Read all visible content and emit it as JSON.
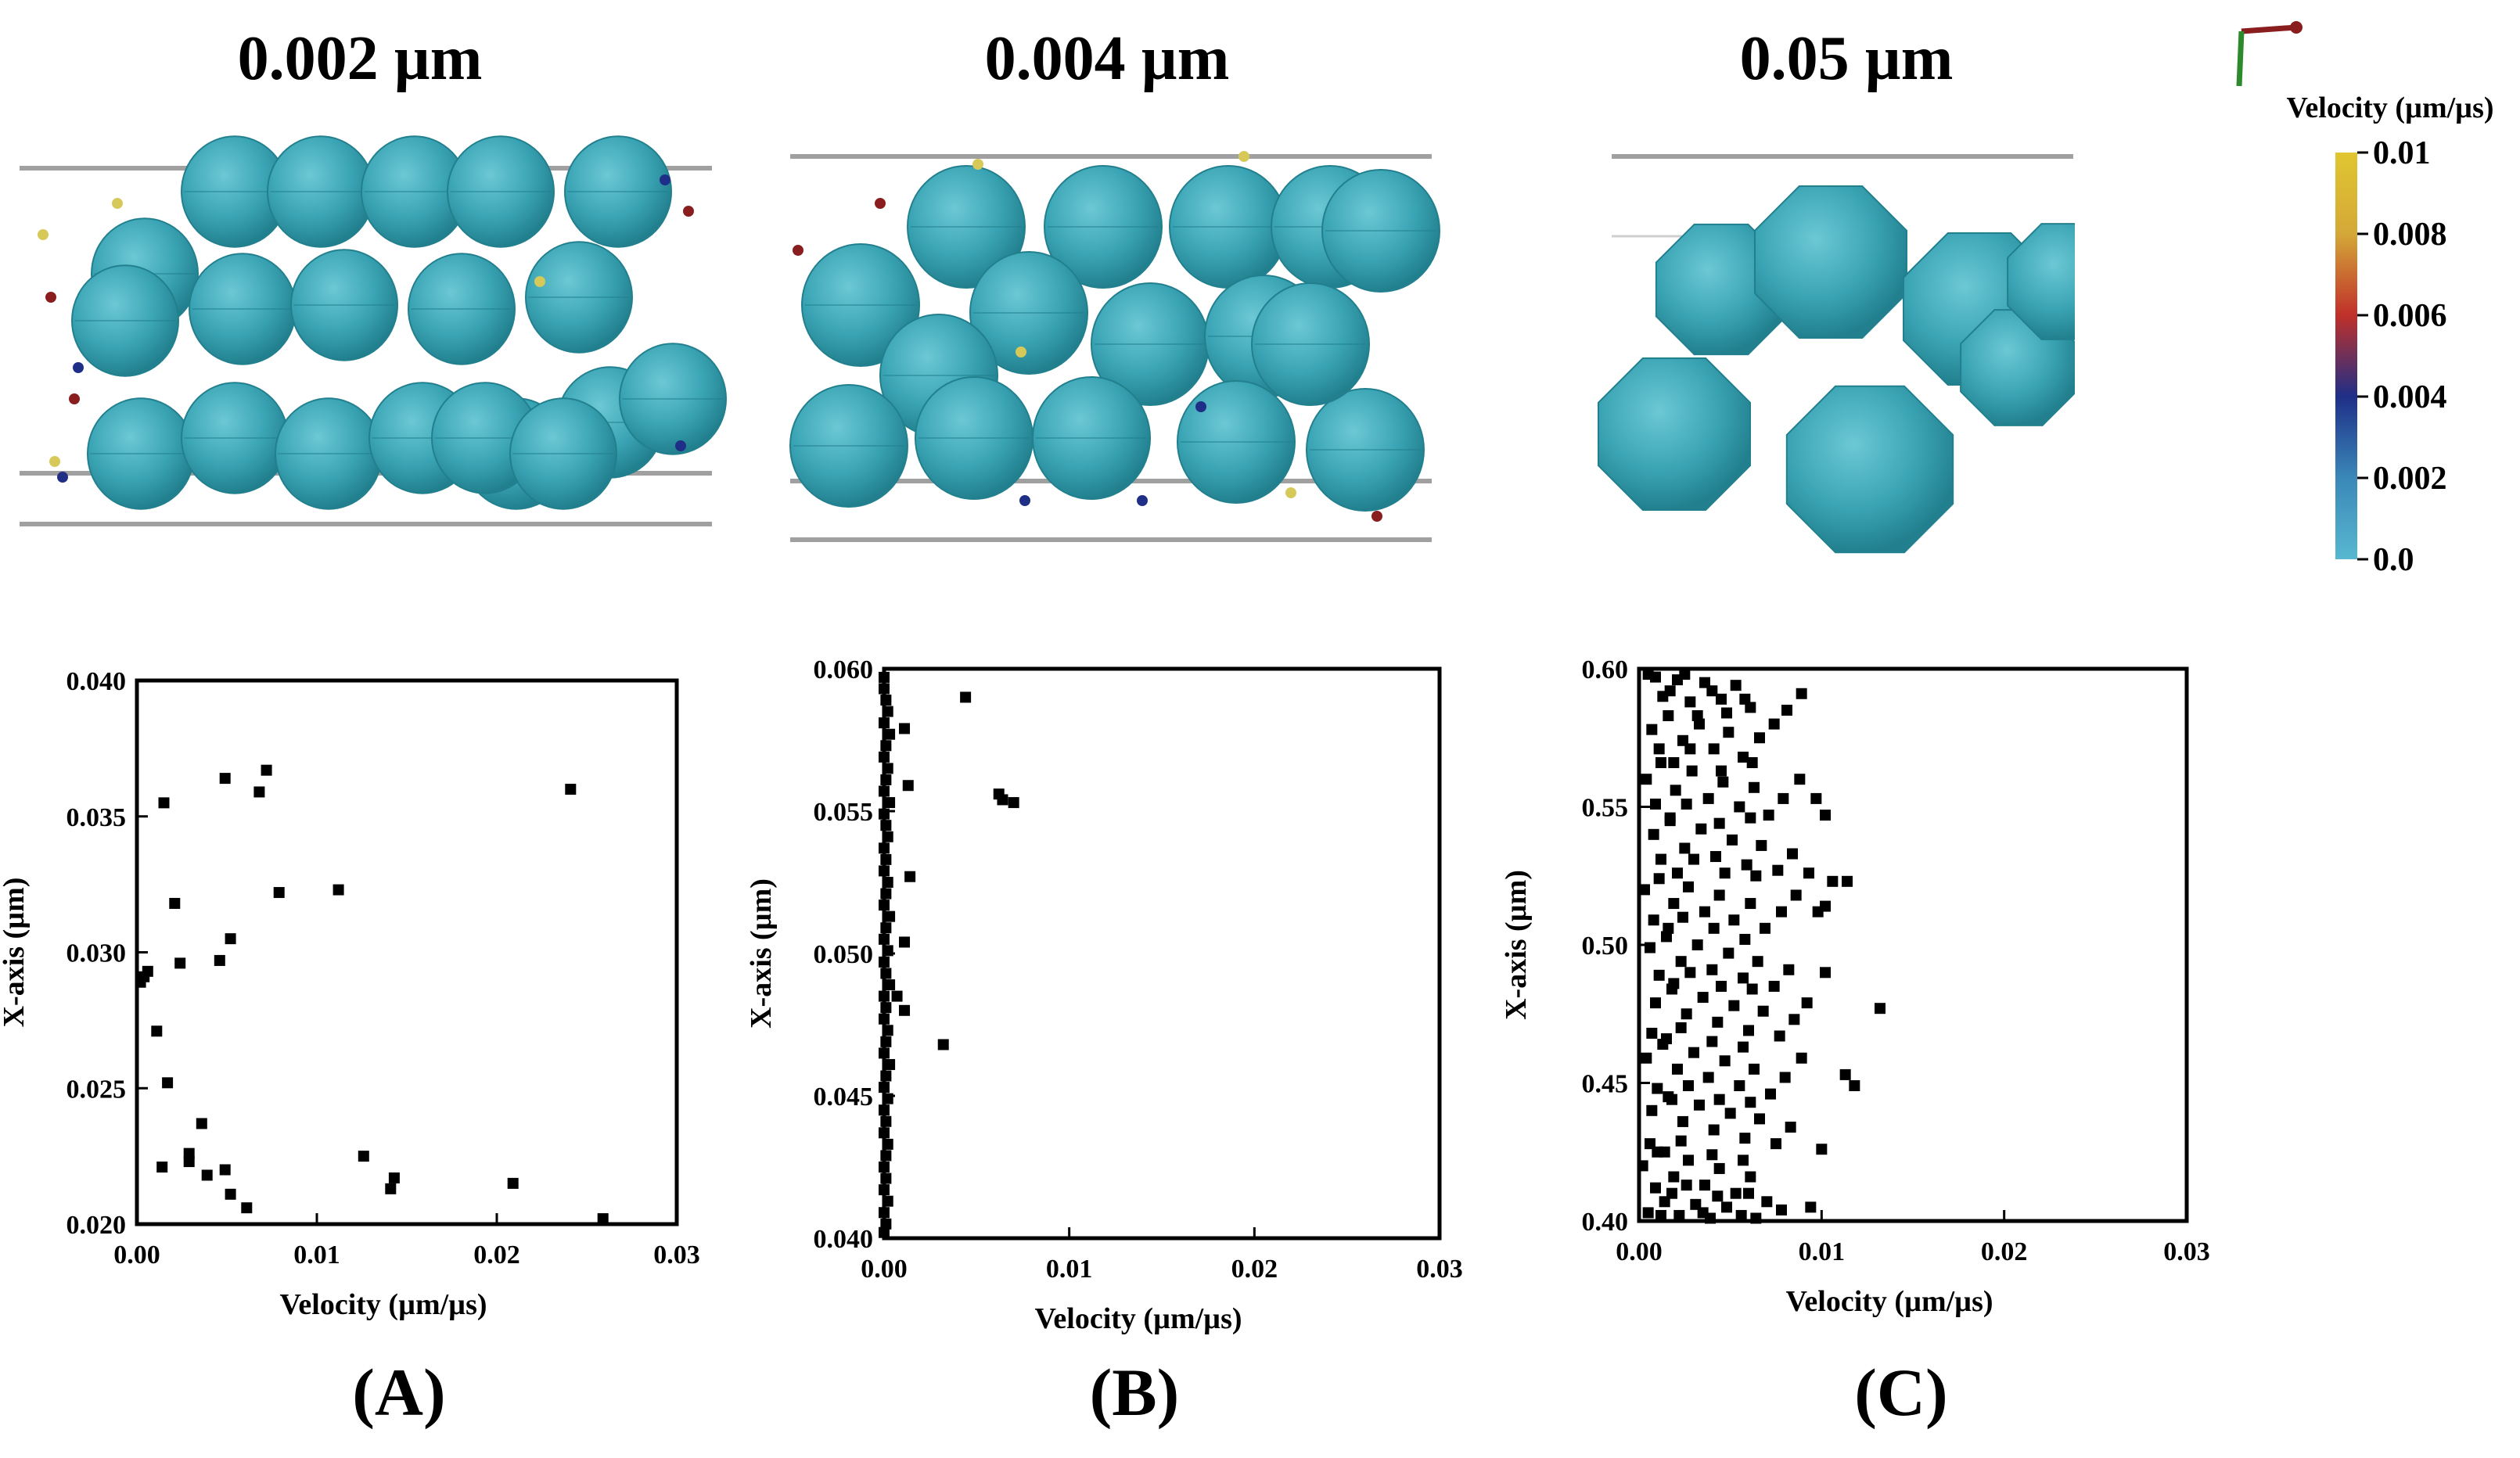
{
  "panels": [
    {
      "size_label": "0.002 µm",
      "panel_label": "(A)"
    },
    {
      "size_label": "0.004 µm",
      "panel_label": "(B)"
    },
    {
      "size_label": "0.05 µm",
      "panel_label": "(C)"
    }
  ],
  "colorbar": {
    "title": "Velocity (µm/µs)",
    "ticks": [
      "0.01",
      "0.008",
      "0.006",
      "0.004",
      "0.002",
      "0.0"
    ],
    "gradient_colors": [
      "#e0c630",
      "#d4a838",
      "#c0302a",
      "#1f2f88",
      "#3a88b8",
      "#58b8d0"
    ]
  },
  "colors": {
    "sphere": "#3aa4b4",
    "sphere_highlight": "#6cc8d4",
    "sphere_shadow": "#22808e",
    "marker": "#000000"
  },
  "chart_data": [
    {
      "type": "scatter",
      "xlabel": "Velocity (µm/µs)",
      "ylabel": "X-axis (µm)",
      "xlim": [
        0,
        0.03
      ],
      "ylim": [
        0.02,
        0.04
      ],
      "xticks": [
        "0.00",
        "0.01",
        "0.02",
        "0.03"
      ],
      "yticks": [
        "0.020",
        "0.025",
        "0.030",
        "0.035",
        "0.040"
      ],
      "points": [
        [
          0.0015,
          0.0355
        ],
        [
          0.0049,
          0.0364
        ],
        [
          0.0068,
          0.0359
        ],
        [
          0.0072,
          0.0367
        ],
        [
          0.0241,
          0.036
        ],
        [
          0.0021,
          0.0318
        ],
        [
          0.0079,
          0.0322
        ],
        [
          0.0112,
          0.0323
        ],
        [
          0.0052,
          0.0305
        ],
        [
          0.0046,
          0.0297
        ],
        [
          0.0024,
          0.0296
        ],
        [
          0.0004,
          0.0291
        ],
        [
          0.0006,
          0.0293
        ],
        [
          0.0002,
          0.0289
        ],
        [
          0.0011,
          0.0271
        ],
        [
          0.0017,
          0.0252
        ],
        [
          0.0036,
          0.0237
        ],
        [
          0.0029,
          0.0226
        ],
        [
          0.0029,
          0.0223
        ],
        [
          0.0014,
          0.0221
        ],
        [
          0.0039,
          0.0218
        ],
        [
          0.0049,
          0.022
        ],
        [
          0.0052,
          0.0211
        ],
        [
          0.0061,
          0.0206
        ],
        [
          0.0126,
          0.0225
        ],
        [
          0.0143,
          0.0217
        ],
        [
          0.0141,
          0.0213
        ],
        [
          0.0209,
          0.0215
        ],
        [
          0.0259,
          0.0202
        ]
      ]
    },
    {
      "type": "scatter",
      "xlabel": "Velocity (µm/µs)",
      "ylabel": "X-axis (µm)",
      "xlim": [
        0,
        0.03
      ],
      "ylim": [
        0.04,
        0.06
      ],
      "xticks": [
        "0.00",
        "0.01",
        "0.02",
        "0.03"
      ],
      "yticks": [
        "0.040",
        "0.045",
        "0.050",
        "0.055",
        "0.060"
      ],
      "points": [
        [
          0.0,
          0.0597
        ],
        [
          0.0,
          0.0593
        ],
        [
          0.0001,
          0.0589
        ],
        [
          0.0002,
          0.0585
        ],
        [
          0.0,
          0.0581
        ],
        [
          0.0003,
          0.0577
        ],
        [
          0.0001,
          0.0573
        ],
        [
          0.0,
          0.0569
        ],
        [
          0.0002,
          0.0565
        ],
        [
          0.0001,
          0.0561
        ],
        [
          0.0,
          0.0557
        ],
        [
          0.0003,
          0.0553
        ],
        [
          0.0,
          0.0549
        ],
        [
          0.0001,
          0.0545
        ],
        [
          0.0002,
          0.0541
        ],
        [
          0.0,
          0.0537
        ],
        [
          0.0001,
          0.0533
        ],
        [
          0.0,
          0.0529
        ],
        [
          0.0002,
          0.0525
        ],
        [
          0.0001,
          0.0521
        ],
        [
          0.0,
          0.0517
        ],
        [
          0.0003,
          0.0513
        ],
        [
          0.0001,
          0.0509
        ],
        [
          0.0,
          0.0505
        ],
        [
          0.0002,
          0.0501
        ],
        [
          0.0,
          0.0497
        ],
        [
          0.0001,
          0.0493
        ],
        [
          0.0003,
          0.0489
        ],
        [
          0.0,
          0.0485
        ],
        [
          0.0001,
          0.0481
        ],
        [
          0.0,
          0.0477
        ],
        [
          0.0002,
          0.0473
        ],
        [
          0.0001,
          0.0469
        ],
        [
          0.0,
          0.0465
        ],
        [
          0.0003,
          0.0461
        ],
        [
          0.0001,
          0.0457
        ],
        [
          0.0,
          0.0453
        ],
        [
          0.0002,
          0.0449
        ],
        [
          0.0,
          0.0445
        ],
        [
          0.0001,
          0.0441
        ],
        [
          0.0,
          0.0437
        ],
        [
          0.0002,
          0.0433
        ],
        [
          0.0001,
          0.0429
        ],
        [
          0.0,
          0.0425
        ],
        [
          0.0001,
          0.0421
        ],
        [
          0.0,
          0.0417
        ],
        [
          0.0002,
          0.0413
        ],
        [
          0.0,
          0.0409
        ],
        [
          0.0001,
          0.0405
        ],
        [
          0.0,
          0.0402
        ],
        [
          0.0044,
          0.059
        ],
        [
          0.0011,
          0.0579
        ],
        [
          0.0013,
          0.0559
        ],
        [
          0.0062,
          0.0556
        ],
        [
          0.0064,
          0.0554
        ],
        [
          0.007,
          0.0553
        ],
        [
          0.0014,
          0.0527
        ],
        [
          0.0011,
          0.0504
        ],
        [
          0.0007,
          0.0485
        ],
        [
          0.0011,
          0.048
        ],
        [
          0.0032,
          0.0468
        ]
      ]
    },
    {
      "type": "scatter",
      "xlabel": "Velocity (µm/µs)",
      "ylabel": "X-axis (µm)",
      "xlim": [
        0,
        0.03
      ],
      "ylim": [
        0.4,
        0.6
      ],
      "xticks": [
        "0.00",
        "0.01",
        "0.02",
        "0.03"
      ],
      "yticks": [
        "0.40",
        "0.45",
        "0.50",
        "0.55",
        "0.60"
      ],
      "points": [
        [
          0.0005,
          0.598
        ],
        [
          0.0013,
          0.59
        ],
        [
          0.0021,
          0.596
        ],
        [
          0.0028,
          0.588
        ],
        [
          0.0036,
          0.595
        ],
        [
          0.0045,
          0.589
        ],
        [
          0.0053,
          0.594
        ],
        [
          0.0061,
          0.586
        ],
        [
          0.0007,
          0.578
        ],
        [
          0.0016,
          0.583
        ],
        [
          0.0024,
          0.574
        ],
        [
          0.0033,
          0.58
        ],
        [
          0.0041,
          0.571
        ],
        [
          0.0049,
          0.577
        ],
        [
          0.0057,
          0.568
        ],
        [
          0.0066,
          0.575
        ],
        [
          0.0074,
          0.58
        ],
        [
          0.0081,
          0.585
        ],
        [
          0.0089,
          0.591
        ],
        [
          0.0004,
          0.56
        ],
        [
          0.0012,
          0.566
        ],
        [
          0.002,
          0.556
        ],
        [
          0.0029,
          0.563
        ],
        [
          0.0038,
          0.553
        ],
        [
          0.0046,
          0.559
        ],
        [
          0.0055,
          0.55
        ],
        [
          0.0063,
          0.557
        ],
        [
          0.0071,
          0.547
        ],
        [
          0.0079,
          0.553
        ],
        [
          0.0088,
          0.56
        ],
        [
          0.0097,
          0.553
        ],
        [
          0.0102,
          0.547
        ],
        [
          0.0008,
          0.54
        ],
        [
          0.0017,
          0.545
        ],
        [
          0.0025,
          0.535
        ],
        [
          0.0034,
          0.542
        ],
        [
          0.0042,
          0.532
        ],
        [
          0.0051,
          0.538
        ],
        [
          0.0059,
          0.529
        ],
        [
          0.0067,
          0.536
        ],
        [
          0.0076,
          0.527
        ],
        [
          0.0084,
          0.533
        ],
        [
          0.0093,
          0.526
        ],
        [
          0.0106,
          0.523
        ],
        [
          0.0114,
          0.523
        ],
        [
          0.0003,
          0.52
        ],
        [
          0.0011,
          0.524
        ],
        [
          0.0019,
          0.515
        ],
        [
          0.0027,
          0.521
        ],
        [
          0.0036,
          0.512
        ],
        [
          0.0044,
          0.518
        ],
        [
          0.0052,
          0.509
        ],
        [
          0.0061,
          0.515
        ],
        [
          0.0069,
          0.506
        ],
        [
          0.0078,
          0.512
        ],
        [
          0.0086,
          0.518
        ],
        [
          0.0098,
          0.512
        ],
        [
          0.0102,
          0.514
        ],
        [
          0.0006,
          0.499
        ],
        [
          0.0015,
          0.503
        ],
        [
          0.0023,
          0.494
        ],
        [
          0.0032,
          0.5
        ],
        [
          0.004,
          0.491
        ],
        [
          0.0049,
          0.497
        ],
        [
          0.0057,
          0.488
        ],
        [
          0.0065,
          0.494
        ],
        [
          0.0074,
          0.485
        ],
        [
          0.0082,
          0.491
        ],
        [
          0.0102,
          0.49
        ],
        [
          0.0009,
          0.479
        ],
        [
          0.0018,
          0.484
        ],
        [
          0.0026,
          0.475
        ],
        [
          0.0035,
          0.481
        ],
        [
          0.0043,
          0.472
        ],
        [
          0.0052,
          0.478
        ],
        [
          0.006,
          0.469
        ],
        [
          0.0068,
          0.476
        ],
        [
          0.0077,
          0.467
        ],
        [
          0.0085,
          0.473
        ],
        [
          0.0092,
          0.479
        ],
        [
          0.0132,
          0.477
        ],
        [
          0.0004,
          0.459
        ],
        [
          0.0013,
          0.464
        ],
        [
          0.0021,
          0.455
        ],
        [
          0.003,
          0.461
        ],
        [
          0.0038,
          0.452
        ],
        [
          0.0047,
          0.458
        ],
        [
          0.0055,
          0.449
        ],
        [
          0.0063,
          0.455
        ],
        [
          0.0072,
          0.446
        ],
        [
          0.008,
          0.452
        ],
        [
          0.0089,
          0.459
        ],
        [
          0.0113,
          0.453
        ],
        [
          0.0118,
          0.449
        ],
        [
          0.0007,
          0.44
        ],
        [
          0.0016,
          0.445
        ],
        [
          0.0024,
          0.436
        ],
        [
          0.0033,
          0.442
        ],
        [
          0.0041,
          0.433
        ],
        [
          0.005,
          0.439
        ],
        [
          0.0058,
          0.43
        ],
        [
          0.0066,
          0.437
        ],
        [
          0.0075,
          0.428
        ],
        [
          0.0083,
          0.434
        ],
        [
          0.01,
          0.426
        ],
        [
          0.0002,
          0.42
        ],
        [
          0.001,
          0.425
        ],
        [
          0.0019,
          0.416
        ],
        [
          0.0027,
          0.422
        ],
        [
          0.0036,
          0.413
        ],
        [
          0.0044,
          0.419
        ],
        [
          0.0053,
          0.41
        ],
        [
          0.0061,
          0.416
        ],
        [
          0.007,
          0.407
        ],
        [
          0.0078,
          0.404
        ],
        [
          0.0005,
          0.403
        ],
        [
          0.0014,
          0.407
        ],
        [
          0.0022,
          0.402
        ],
        [
          0.0031,
          0.406
        ],
        [
          0.0039,
          0.401
        ],
        [
          0.0048,
          0.405
        ],
        [
          0.0056,
          0.402
        ],
        [
          0.0094,
          0.405
        ],
        [
          0.0009,
          0.597
        ],
        [
          0.0017,
          0.592
        ],
        [
          0.0025,
          0.598
        ],
        [
          0.0032,
          0.583
        ],
        [
          0.004,
          0.592
        ],
        [
          0.0048,
          0.584
        ],
        [
          0.0058,
          0.589
        ],
        [
          0.0011,
          0.571
        ],
        [
          0.0019,
          0.566
        ],
        [
          0.0028,
          0.571
        ],
        [
          0.0045,
          0.563
        ],
        [
          0.0062,
          0.566
        ],
        [
          0.0009,
          0.551
        ],
        [
          0.0017,
          0.546
        ],
        [
          0.0026,
          0.551
        ],
        [
          0.0044,
          0.544
        ],
        [
          0.0061,
          0.546
        ],
        [
          0.0012,
          0.531
        ],
        [
          0.0021,
          0.526
        ],
        [
          0.003,
          0.531
        ],
        [
          0.0047,
          0.526
        ],
        [
          0.0064,
          0.525
        ],
        [
          0.0008,
          0.509
        ],
        [
          0.0016,
          0.506
        ],
        [
          0.0024,
          0.51
        ],
        [
          0.0041,
          0.506
        ],
        [
          0.0058,
          0.502
        ],
        [
          0.0011,
          0.489
        ],
        [
          0.0019,
          0.486
        ],
        [
          0.0028,
          0.49
        ],
        [
          0.0045,
          0.485
        ],
        [
          0.0062,
          0.484
        ],
        [
          0.0007,
          0.468
        ],
        [
          0.0015,
          0.466
        ],
        [
          0.0023,
          0.47
        ],
        [
          0.004,
          0.465
        ],
        [
          0.0057,
          0.463
        ],
        [
          0.001,
          0.448
        ],
        [
          0.0018,
          0.444
        ],
        [
          0.0027,
          0.449
        ],
        [
          0.0044,
          0.444
        ],
        [
          0.0061,
          0.443
        ],
        [
          0.0006,
          0.428
        ],
        [
          0.0014,
          0.425
        ],
        [
          0.0023,
          0.429
        ],
        [
          0.004,
          0.424
        ],
        [
          0.0057,
          0.422
        ],
        [
          0.0009,
          0.412
        ],
        [
          0.0018,
          0.41
        ],
        [
          0.0026,
          0.413
        ],
        [
          0.0043,
          0.409
        ],
        [
          0.006,
          0.41
        ],
        [
          0.0012,
          0.402
        ],
        [
          0.0035,
          0.403
        ],
        [
          0.0064,
          0.401
        ]
      ]
    }
  ]
}
